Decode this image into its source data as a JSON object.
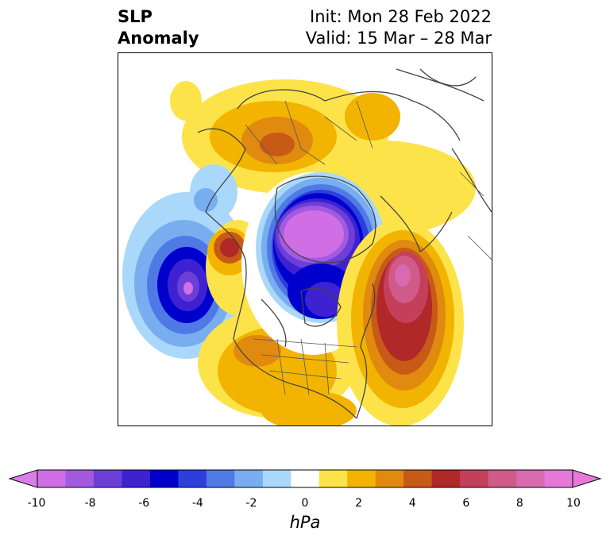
{
  "title": {
    "variable_line1": "SLP",
    "variable_line2": "Anomaly",
    "init": "Init: Mon 28 Feb 2022",
    "valid": "Valid: 15 Mar – 28 Mar"
  },
  "colorbar": {
    "unit": "hPa",
    "min": -10,
    "max": 10,
    "extend": "both",
    "tick_labels": [
      "-10",
      "-8",
      "-6",
      "-4",
      "-2",
      "0",
      "2",
      "4",
      "6",
      "8",
      "10"
    ],
    "levels": [
      -10,
      -9,
      -8,
      -7,
      -6,
      -5,
      -4,
      -3,
      -2,
      -1,
      1,
      2,
      3,
      4,
      5,
      6,
      7,
      8,
      9,
      10
    ],
    "colors": [
      "#d06ee6",
      "#a25ae0",
      "#6b3fd8",
      "#3e22d2",
      "#0000cd",
      "#2c3fdd",
      "#4f7ae6",
      "#78adf0",
      "#a9d8fa",
      "#ffffff",
      "#fde34a",
      "#f2b400",
      "#e08a10",
      "#c85a18",
      "#b02828",
      "#c4405a",
      "#d05a88",
      "#d86ab0",
      "#e678d8"
    ],
    "under_color": "#d97ee8",
    "over_color": "#e57ad8"
  },
  "map": {
    "projection": "north-polar-stereographic",
    "features": [
      "coastlines",
      "country-borders",
      "state-borders"
    ]
  }
}
